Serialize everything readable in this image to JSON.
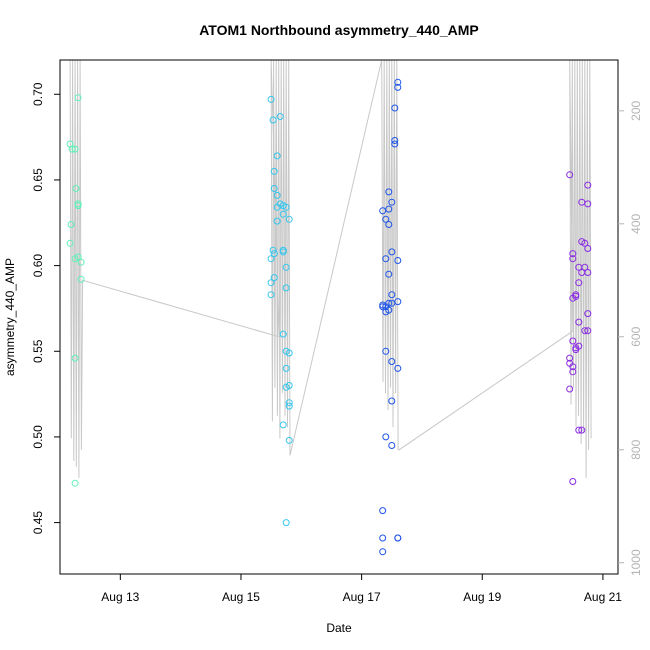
{
  "chart_data": {
    "type": "scatter",
    "title": "ATOM1 Northbound asymmetry_440_AMP",
    "xlabel": "Date",
    "ylabel": "asymmetry_440_AMP",
    "x_ticks": [
      "Aug 13",
      "Aug 15",
      "Aug 17",
      "Aug 19",
      "Aug 21"
    ],
    "y_ticks": [
      "0.45",
      "0.50",
      "0.55",
      "0.60",
      "0.65",
      "0.70"
    ],
    "y2_ticks": [
      "200",
      "400",
      "600",
      "800",
      "1000"
    ],
    "xlim": [
      "2024-08-12T00:00",
      "2024-08-21T06:00"
    ],
    "ylim": [
      0.42,
      0.72
    ],
    "y2lim": [
      1020,
      110
    ],
    "grid": false,
    "series": [
      {
        "color": "#5ef0b8",
        "x": [
          "2024-08-12T04:00",
          "2024-08-12T04:48",
          "2024-08-12T06:00",
          "2024-08-12T07:12",
          "2024-08-12T04:24",
          "2024-08-12T04:00",
          "2024-08-12T06:24",
          "2024-08-12T06:00",
          "2024-08-12T07:12",
          "2024-08-12T07:12",
          "2024-08-12T07:12",
          "2024-08-12T08:24",
          "2024-08-12T08:24",
          "2024-08-12T06:00",
          "2024-08-12T06:00"
        ],
        "y": [
          0.671,
          0.668,
          0.668,
          0.698,
          0.624,
          0.613,
          0.645,
          0.604,
          0.635,
          0.636,
          0.605,
          0.602,
          0.592,
          0.546,
          0.473
        ]
      },
      {
        "color": "#34c6ee",
        "x": [
          "2024-08-15T12:00",
          "2024-08-15T12:48",
          "2024-08-15T15:36",
          "2024-08-15T14:24",
          "2024-08-15T13:12",
          "2024-08-15T13:12",
          "2024-08-15T14:24",
          "2024-08-15T14:24",
          "2024-08-15T15:36",
          "2024-08-15T16:48",
          "2024-08-15T16:48",
          "2024-08-15T16:48",
          "2024-08-15T18:00",
          "2024-08-15T18:00",
          "2024-08-15T19:12",
          "2024-08-15T14:24",
          "2024-08-15T12:48",
          "2024-08-15T12:00",
          "2024-08-15T13:12",
          "2024-08-15T13:12",
          "2024-08-15T16:48",
          "2024-08-15T18:00",
          "2024-08-15T12:00",
          "2024-08-15T12:00",
          "2024-08-15T16:48",
          "2024-08-15T18:00",
          "2024-08-15T18:00",
          "2024-08-15T19:12",
          "2024-08-15T18:00",
          "2024-08-15T19:12",
          "2024-08-15T19:12",
          "2024-08-15T16:48",
          "2024-08-15T19:12",
          "2024-08-15T18:00",
          "2024-08-15T19:12"
        ],
        "y": [
          0.697,
          0.685,
          0.687,
          0.664,
          0.655,
          0.645,
          0.641,
          0.634,
          0.636,
          0.635,
          0.63,
          0.609,
          0.634,
          0.599,
          0.627,
          0.626,
          0.609,
          0.604,
          0.607,
          0.593,
          0.608,
          0.587,
          0.59,
          0.583,
          0.56,
          0.55,
          0.54,
          0.549,
          0.529,
          0.53,
          0.52,
          0.507,
          0.518,
          0.45,
          0.498
        ]
      },
      {
        "color": "#1f55e8",
        "x": [
          "2024-08-17T14:24",
          "2024-08-17T14:24",
          "2024-08-17T13:12",
          "2024-08-17T13:12",
          "2024-08-17T13:12",
          "2024-08-17T10:48",
          "2024-08-17T09:36",
          "2024-08-17T10:48",
          "2024-08-17T12:00",
          "2024-08-17T08:24",
          "2024-08-17T10:48",
          "2024-08-17T12:00",
          "2024-08-17T09:36",
          "2024-08-17T14:24",
          "2024-08-17T10:48",
          "2024-08-17T12:00",
          "2024-08-17T14:24",
          "2024-08-17T09:36",
          "2024-08-17T08:24",
          "2024-08-17T10:48",
          "2024-08-17T09:36",
          "2024-08-17T08:24",
          "2024-08-17T09:36",
          "2024-08-17T12:00",
          "2024-08-17T14:24",
          "2024-08-17T12:00",
          "2024-08-17T09:36",
          "2024-08-17T12:00",
          "2024-08-17T10:48",
          "2024-08-17T12:00",
          "2024-08-17T14:24",
          "2024-08-17T08:24",
          "2024-08-17T08:24",
          "2024-08-17T14:24",
          "2024-08-17T08:24"
        ],
        "y": [
          0.707,
          0.704,
          0.692,
          0.673,
          0.671,
          0.643,
          0.627,
          0.633,
          0.637,
          0.632,
          0.624,
          0.608,
          0.604,
          0.603,
          0.595,
          0.583,
          0.579,
          0.576,
          0.577,
          0.574,
          0.573,
          0.576,
          0.55,
          0.544,
          0.54,
          0.521,
          0.5,
          0.495,
          0.578,
          0.578,
          0.441,
          0.457,
          0.441,
          0.441,
          0.433
        ]
      },
      {
        "color": "#8a2be2",
        "x": [
          "2024-08-20T10:48",
          "2024-08-20T15:36",
          "2024-08-20T18:00",
          "2024-08-20T18:00",
          "2024-08-20T12:00",
          "2024-08-20T15:36",
          "2024-08-20T16:48",
          "2024-08-20T18:00",
          "2024-08-20T12:00",
          "2024-08-20T14:24",
          "2024-08-20T16:48",
          "2024-08-20T18:00",
          "2024-08-20T15:36",
          "2024-08-20T14:24",
          "2024-08-20T13:12",
          "2024-08-20T18:00",
          "2024-08-20T12:00",
          "2024-08-20T13:12",
          "2024-08-20T14:24",
          "2024-08-20T16:48",
          "2024-08-20T18:00",
          "2024-08-20T14:24",
          "2024-08-20T12:00",
          "2024-08-20T10:48",
          "2024-08-20T12:00",
          "2024-08-20T10:48",
          "2024-08-20T13:12",
          "2024-08-20T12:00",
          "2024-08-20T14:24",
          "2024-08-20T15:36",
          "2024-08-20T13:12",
          "2024-08-20T10:48",
          "2024-08-20T12:00"
        ],
        "y": [
          0.653,
          0.637,
          0.636,
          0.647,
          0.607,
          0.614,
          0.613,
          0.61,
          0.604,
          0.599,
          0.599,
          0.596,
          0.596,
          0.59,
          0.583,
          0.572,
          0.581,
          0.582,
          0.567,
          0.562,
          0.562,
          0.553,
          0.556,
          0.543,
          0.541,
          0.546,
          0.552,
          0.538,
          0.504,
          0.504,
          0.551,
          0.528,
          0.474
        ]
      }
    ],
    "depth_line": {
      "color": "#c8c8c8",
      "x": [
        "2024-08-12T04:00",
        "2024-08-12T04:30",
        "2024-08-12T05:00",
        "2024-08-12T05:30",
        "2024-08-12T06:00",
        "2024-08-12T06:30",
        "2024-08-12T07:00",
        "2024-08-12T07:30",
        "2024-08-12T08:00",
        "2024-08-12T08:30",
        "2024-08-12T09:00",
        "2024-08-15T15:12",
        "2024-08-15T12:00",
        "2024-08-15T12:30",
        "2024-08-15T13:00",
        "2024-08-15T13:30",
        "2024-08-15T14:00",
        "2024-08-15T14:30",
        "2024-08-15T15:00",
        "2024-08-15T15:30",
        "2024-08-15T16:00",
        "2024-08-15T16:30",
        "2024-08-15T17:00",
        "2024-08-15T17:30",
        "2024-08-15T18:00",
        "2024-08-15T18:30",
        "2024-08-15T19:00",
        "2024-08-15T19:30",
        "2024-08-17T08:00",
        "2024-08-17T08:30",
        "2024-08-17T09:00",
        "2024-08-17T09:30",
        "2024-08-17T10:00",
        "2024-08-17T10:30",
        "2024-08-17T11:00",
        "2024-08-17T11:30",
        "2024-08-17T12:00",
        "2024-08-17T12:30",
        "2024-08-17T13:00",
        "2024-08-17T13:30",
        "2024-08-17T14:00",
        "2024-08-17T14:30",
        "2024-08-17T15:00",
        "2024-08-20T12:00",
        "2024-08-20T10:48",
        "2024-08-20T11:18",
        "2024-08-20T11:48",
        "2024-08-20T12:18",
        "2024-08-20T12:48",
        "2024-08-20T13:18",
        "2024-08-20T13:48",
        "2024-08-20T14:18",
        "2024-08-20T14:48",
        "2024-08-20T15:18",
        "2024-08-20T15:48",
        "2024-08-20T16:18",
        "2024-08-20T16:48",
        "2024-08-20T17:18",
        "2024-08-20T17:48",
        "2024-08-20T18:18",
        "2024-08-20T18:48",
        "2024-08-20T19:18"
      ],
      "y": [
        110,
        780,
        110,
        820,
        110,
        830,
        110,
        850,
        110,
        800,
        500,
        600,
        110,
        750,
        110,
        690,
        110,
        740,
        110,
        780,
        110,
        700,
        110,
        740,
        110,
        760,
        110,
        810,
        110,
        680,
        110,
        700,
        110,
        730,
        110,
        690,
        110,
        760,
        110,
        700,
        110,
        800,
        800,
        590,
        110,
        720,
        110,
        690,
        110,
        760,
        110,
        740,
        110,
        790,
        110,
        770,
        110,
        850,
        110,
        800,
        110,
        780
      ]
    }
  }
}
